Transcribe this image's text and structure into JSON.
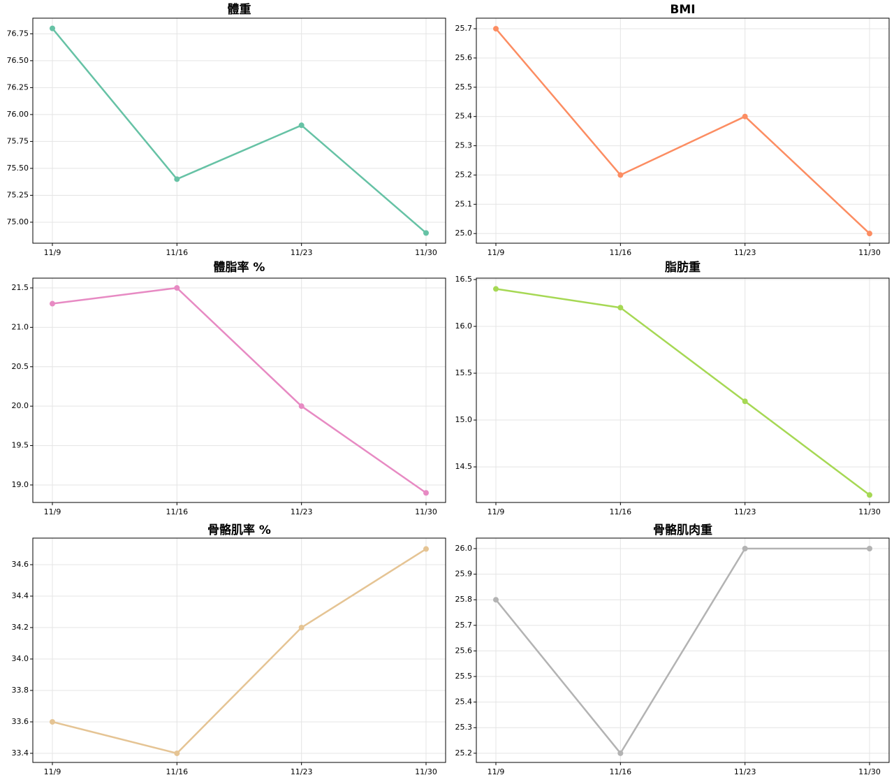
{
  "chart_data": [
    {
      "type": "line",
      "title": "體重",
      "categories": [
        "11/9",
        "11/16",
        "11/23",
        "11/30"
      ],
      "values": [
        76.8,
        75.4,
        75.9,
        74.9
      ],
      "color": "#66c2a5",
      "ylim": [
        74.805,
        76.895
      ],
      "yticks": [
        {
          "value": 75.0,
          "label": "75.00"
        },
        75.25,
        {
          "value": 75.5,
          "label": "75.50"
        },
        75.75,
        {
          "value": 76.0,
          "label": "76.00"
        },
        76.25,
        {
          "value": 76.5,
          "label": "76.50"
        },
        76.75
      ],
      "grid": true
    },
    {
      "type": "line",
      "title": "BMI",
      "categories": [
        "11/9",
        "11/16",
        "11/23",
        "11/30"
      ],
      "values": [
        25.7,
        25.2,
        25.4,
        25.0
      ],
      "color": "#fc8d62",
      "ylim": [
        24.967,
        25.736
      ],
      "yticks": [
        {
          "value": 25.0,
          "label": "25.0"
        },
        25.1,
        25.2,
        25.3,
        25.4,
        25.5,
        25.6,
        25.7
      ],
      "grid": true
    },
    {
      "type": "line",
      "title": "體脂率 %",
      "categories": [
        "11/9",
        "11/16",
        "11/23",
        "11/30"
      ],
      "values": [
        21.3,
        21.5,
        20.0,
        18.9
      ],
      "color": "#e78ac3",
      "ylim": [
        18.778,
        21.624
      ],
      "yticks": [
        {
          "value": 19.0,
          "label": "19.0"
        },
        19.5,
        {
          "value": 20.0,
          "label": "20.0"
        },
        20.5,
        {
          "value": 21.0,
          "label": "21.0"
        },
        21.5
      ],
      "grid": true
    },
    {
      "type": "line",
      "title": "脂肪重",
      "categories": [
        "11/9",
        "11/16",
        "11/23",
        "11/30"
      ],
      "values": [
        16.4,
        16.2,
        15.2,
        14.2
      ],
      "color": "#a6d854",
      "ylim": [
        14.12,
        16.515
      ],
      "yticks": [
        14.5,
        {
          "value": 15.0,
          "label": "15.0"
        },
        15.5,
        {
          "value": 16.0,
          "label": "16.0"
        },
        16.5
      ],
      "grid": true
    },
    {
      "type": "line",
      "title": "骨骼肌率 %",
      "categories": [
        "11/9",
        "11/16",
        "11/23",
        "11/30"
      ],
      "values": [
        33.6,
        33.4,
        34.2,
        34.7
      ],
      "color": "#e5c494",
      "ylim": [
        33.342,
        34.769
      ],
      "yticks": [
        33.4,
        33.6,
        33.8,
        {
          "value": 34.0,
          "label": "34.0"
        },
        34.2,
        34.4,
        34.6
      ],
      "grid": true
    },
    {
      "type": "line",
      "title": "骨骼肌肉重",
      "categories": [
        "11/9",
        "11/16",
        "11/23",
        "11/30"
      ],
      "values": [
        25.8,
        25.2,
        26.0,
        26.0
      ],
      "color": "#b3b3b3",
      "ylim": [
        25.164,
        26.041
      ],
      "yticks": [
        25.2,
        25.3,
        25.4,
        25.5,
        25.6,
        25.7,
        25.8,
        25.9,
        {
          "value": 26.0,
          "label": "26.0"
        }
      ],
      "grid": true
    }
  ]
}
